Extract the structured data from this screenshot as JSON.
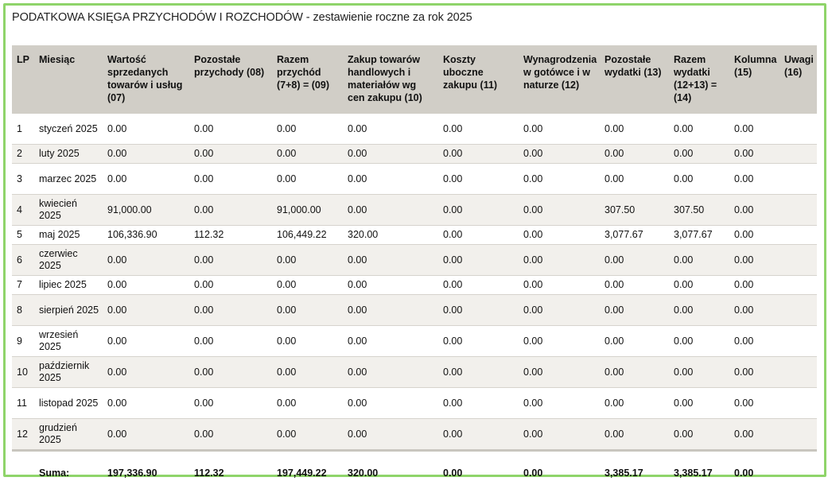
{
  "title": "PODATKOWA KSIĘGA PRZYCHODÓW I ROZCHODÓW - zestawienie roczne za rok 2025",
  "headers": [
    "LP",
    "Miesiąc",
    "Wartość sprzedanych towarów i usług (07)",
    "Pozostałe przychody (08)",
    "Razem przychód (7+8) = (09)",
    "Zakup towarów handlowych i materiałów wg cen zakupu (10)",
    "Koszty uboczne zakupu (11)",
    "Wynagrodzenia w gotówce i w naturze (12)",
    "Pozostałe wydatki (13)",
    "Razem wydatki (12+13) = (14)",
    "Kolumna (15)",
    "Uwagi (16)"
  ],
  "rows": [
    {
      "lp": "1",
      "month": "styczeń 2025",
      "c07": "0.00",
      "c08": "0.00",
      "c09": "0.00",
      "c10": "0.00",
      "c11": "0.00",
      "c12": "0.00",
      "c13": "0.00",
      "c14": "0.00",
      "c15": "0.00",
      "c16": ""
    },
    {
      "lp": "2",
      "month": "luty 2025",
      "c07": "0.00",
      "c08": "0.00",
      "c09": "0.00",
      "c10": "0.00",
      "c11": "0.00",
      "c12": "0.00",
      "c13": "0.00",
      "c14": "0.00",
      "c15": "0.00",
      "c16": ""
    },
    {
      "lp": "3",
      "month": "marzec 2025",
      "c07": "0.00",
      "c08": "0.00",
      "c09": "0.00",
      "c10": "0.00",
      "c11": "0.00",
      "c12": "0.00",
      "c13": "0.00",
      "c14": "0.00",
      "c15": "0.00",
      "c16": ""
    },
    {
      "lp": "4",
      "month": "kwiecień 2025",
      "c07": "91,000.00",
      "c08": "0.00",
      "c09": "91,000.00",
      "c10": "0.00",
      "c11": "0.00",
      "c12": "0.00",
      "c13": "307.50",
      "c14": "307.50",
      "c15": "0.00",
      "c16": ""
    },
    {
      "lp": "5",
      "month": "maj 2025",
      "c07": "106,336.90",
      "c08": "112.32",
      "c09": "106,449.22",
      "c10": "320.00",
      "c11": "0.00",
      "c12": "0.00",
      "c13": "3,077.67",
      "c14": "3,077.67",
      "c15": "0.00",
      "c16": ""
    },
    {
      "lp": "6",
      "month": "czerwiec 2025",
      "c07": "0.00",
      "c08": "0.00",
      "c09": "0.00",
      "c10": "0.00",
      "c11": "0.00",
      "c12": "0.00",
      "c13": "0.00",
      "c14": "0.00",
      "c15": "0.00",
      "c16": ""
    },
    {
      "lp": "7",
      "month": "lipiec 2025",
      "c07": "0.00",
      "c08": "0.00",
      "c09": "0.00",
      "c10": "0.00",
      "c11": "0.00",
      "c12": "0.00",
      "c13": "0.00",
      "c14": "0.00",
      "c15": "0.00",
      "c16": ""
    },
    {
      "lp": "8",
      "month": "sierpień 2025",
      "c07": "0.00",
      "c08": "0.00",
      "c09": "0.00",
      "c10": "0.00",
      "c11": "0.00",
      "c12": "0.00",
      "c13": "0.00",
      "c14": "0.00",
      "c15": "0.00",
      "c16": ""
    },
    {
      "lp": "9",
      "month": "wrzesień 2025",
      "c07": "0.00",
      "c08": "0.00",
      "c09": "0.00",
      "c10": "0.00",
      "c11": "0.00",
      "c12": "0.00",
      "c13": "0.00",
      "c14": "0.00",
      "c15": "0.00",
      "c16": ""
    },
    {
      "lp": "10",
      "month": "październik 2025",
      "c07": "0.00",
      "c08": "0.00",
      "c09": "0.00",
      "c10": "0.00",
      "c11": "0.00",
      "c12": "0.00",
      "c13": "0.00",
      "c14": "0.00",
      "c15": "0.00",
      "c16": ""
    },
    {
      "lp": "11",
      "month": "listopad 2025",
      "c07": "0.00",
      "c08": "0.00",
      "c09": "0.00",
      "c10": "0.00",
      "c11": "0.00",
      "c12": "0.00",
      "c13": "0.00",
      "c14": "0.00",
      "c15": "0.00",
      "c16": ""
    },
    {
      "lp": "12",
      "month": "grudzień 2025",
      "c07": "0.00",
      "c08": "0.00",
      "c09": "0.00",
      "c10": "0.00",
      "c11": "0.00",
      "c12": "0.00",
      "c13": "0.00",
      "c14": "0.00",
      "c15": "0.00",
      "c16": ""
    }
  ],
  "totals": {
    "label": "Suma:",
    "c07": "197,336.90",
    "c08": "112.32",
    "c09": "197,449.22",
    "c10": "320.00",
    "c11": "0.00",
    "c12": "0.00",
    "c13": "3,385.17",
    "c14": "3,385.17",
    "c15": "0.00",
    "c16": ""
  },
  "colors": {
    "frame_border": "#8fd46a",
    "header_bg": "#d1cec7",
    "alt_row_bg": "#f2f0ec"
  }
}
